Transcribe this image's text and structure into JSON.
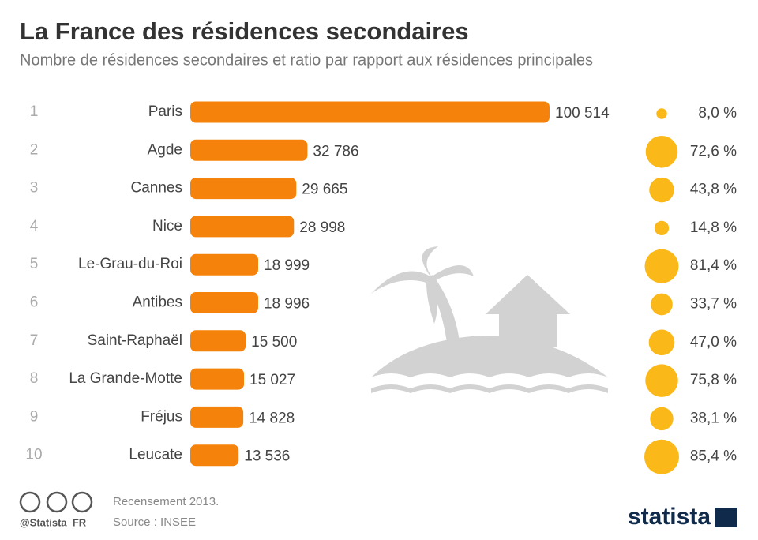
{
  "chart_data": {
    "type": "bar",
    "title": "La France des résidences secondaires",
    "subtitle": "Nombre de résidences secondaires et ratio par rapport aux résidences principales",
    "ranks": [
      1,
      2,
      3,
      4,
      5,
      6,
      7,
      8,
      9,
      10
    ],
    "categories": [
      "Paris",
      "Agde",
      "Cannes",
      "Nice",
      "Le-Grau-du-Roi",
      "Antibes",
      "Saint-Raphaël",
      "La Grande-Motte",
      "Fréjus",
      "Leucate"
    ],
    "values": [
      100514,
      32786,
      29665,
      28998,
      18999,
      18996,
      15500,
      15027,
      14828,
      13536
    ],
    "value_labels": [
      "100 514",
      "32 786",
      "29 665",
      "28 998",
      "18 999",
      "18 996",
      "15 500",
      "15 027",
      "14 828",
      "13 536"
    ],
    "color": "#f5820a",
    "ratio": {
      "values": [
        8.0,
        72.6,
        43.8,
        14.8,
        81.4,
        33.7,
        47.0,
        75.8,
        38.1,
        85.4
      ],
      "value_labels": [
        "8,0 %",
        "72,6 %",
        "43,8 %",
        "14,8 %",
        "81,4 %",
        "33,7 %",
        "47,0 %",
        "75,8 %",
        "38,1 %",
        "85,4 %"
      ],
      "color": "#fbb819"
    },
    "notes": [
      "Recensement 2013.",
      "Source : INSEE"
    ],
    "handle": "@Statista_FR",
    "brand": "statista"
  }
}
